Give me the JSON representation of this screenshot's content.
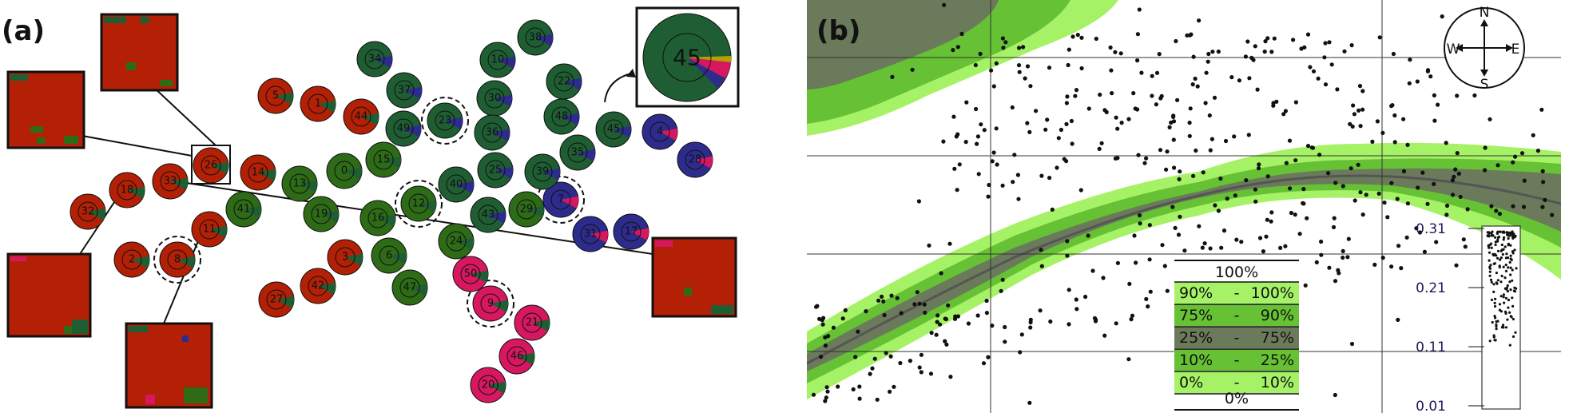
{
  "panels": {
    "a_label": "(a)",
    "b_label": "(b)"
  },
  "colors": {
    "red": "#b32005",
    "green": "#1f5e33",
    "olive": "#2e6b17",
    "blue": "#2d2c8c",
    "pink": "#d71760",
    "band_light": "#a6f266",
    "band_mid": "#66c234",
    "band_dark": "#6a7a5a",
    "median": "#555555"
  },
  "pies": [
    {
      "id": "1",
      "fill": "red"
    },
    {
      "id": "2",
      "fill": "red"
    },
    {
      "id": "3",
      "fill": "red"
    },
    {
      "id": "4",
      "fill": "blue"
    },
    {
      "id": "5",
      "fill": "red"
    },
    {
      "id": "6",
      "fill": "olive"
    },
    {
      "id": "7",
      "fill": "blue",
      "dashed": true
    },
    {
      "id": "8",
      "fill": "red",
      "dashed": true
    },
    {
      "id": "9",
      "fill": "pink",
      "dashed": true
    },
    {
      "id": "10",
      "fill": "green"
    },
    {
      "id": "11",
      "fill": "red"
    },
    {
      "id": "12",
      "fill": "olive",
      "dashed": true
    },
    {
      "id": "13",
      "fill": "olive"
    },
    {
      "id": "14",
      "fill": "red"
    },
    {
      "id": "15",
      "fill": "olive"
    },
    {
      "id": "16",
      "fill": "olive"
    },
    {
      "id": "17",
      "fill": "blue"
    },
    {
      "id": "18",
      "fill": "red"
    },
    {
      "id": "19",
      "fill": "olive"
    },
    {
      "id": "20",
      "fill": "pink"
    },
    {
      "id": "21",
      "fill": "pink"
    },
    {
      "id": "22",
      "fill": "green"
    },
    {
      "id": "23",
      "fill": "green",
      "dashed": true
    },
    {
      "id": "24",
      "fill": "olive"
    },
    {
      "id": "25",
      "fill": "green"
    },
    {
      "id": "26",
      "fill": "red"
    },
    {
      "id": "27",
      "fill": "red"
    },
    {
      "id": "28",
      "fill": "blue"
    },
    {
      "id": "29",
      "fill": "olive"
    },
    {
      "id": "30",
      "fill": "green"
    },
    {
      "id": "31",
      "fill": "blue"
    },
    {
      "id": "32",
      "fill": "red"
    },
    {
      "id": "33",
      "fill": "red"
    },
    {
      "id": "34",
      "fill": "green"
    },
    {
      "id": "35",
      "fill": "green"
    },
    {
      "id": "36",
      "fill": "green"
    },
    {
      "id": "37",
      "fill": "green"
    },
    {
      "id": "38",
      "fill": "green"
    },
    {
      "id": "39",
      "fill": "green"
    },
    {
      "id": "40",
      "fill": "green"
    },
    {
      "id": "41",
      "fill": "olive"
    },
    {
      "id": "42",
      "fill": "red"
    },
    {
      "id": "43",
      "fill": "green"
    },
    {
      "id": "44",
      "fill": "red"
    },
    {
      "id": "45",
      "fill": "green"
    },
    {
      "id": "46",
      "fill": "pink"
    },
    {
      "id": "47",
      "fill": "olive"
    },
    {
      "id": "48",
      "fill": "green"
    },
    {
      "id": "49",
      "fill": "green"
    },
    {
      "id": "50",
      "fill": "pink"
    },
    {
      "id": "0",
      "fill": "olive"
    }
  ],
  "zoom_pie_label": "45",
  "compass": {
    "n": "N",
    "s": "S",
    "e": "E",
    "w": "W"
  },
  "legend": {
    "top": "100%",
    "rows": [
      {
        "lo": "90%",
        "sep": "-",
        "hi": "100%",
        "fill": "band_light"
      },
      {
        "lo": "75%",
        "sep": "-",
        "hi": "90%",
        "fill": "band_mid"
      },
      {
        "lo": "25%",
        "sep": "-",
        "hi": "75%",
        "fill": "band_dark"
      },
      {
        "lo": "10%",
        "sep": "-",
        "hi": "25%",
        "fill": "band_mid"
      },
      {
        "lo": "0%",
        "sep": "-",
        "hi": "10%",
        "fill": "band_light"
      }
    ],
    "bottom": "0%"
  },
  "scale_ticks": [
    "0.31",
    "0.21",
    "0.11",
    "0.01"
  ]
}
